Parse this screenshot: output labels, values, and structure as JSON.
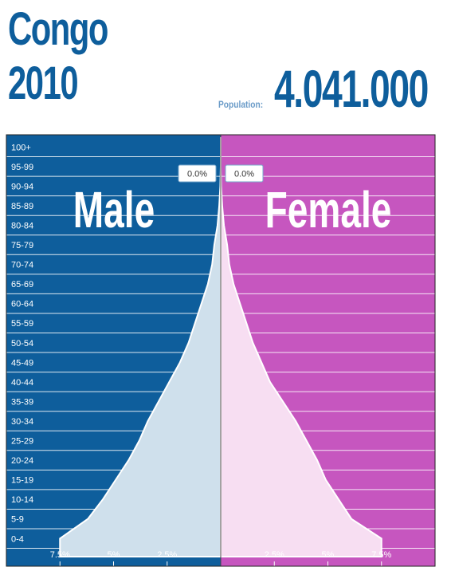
{
  "header": {
    "country": "Congo",
    "year": "2010",
    "population_label": "Population:",
    "population_value": "4.041.000"
  },
  "colors": {
    "male": "#0e5e9c",
    "female": "#c656bf",
    "male_area": "#cfe0ec",
    "female_area": "#f7def2",
    "title": "#0e5e9c"
  },
  "hover": {
    "male_value": "0.0%",
    "female_value": "0.0%"
  },
  "chart_data": {
    "type": "area",
    "orientation": "population-pyramid",
    "side_labels": {
      "male": "Male",
      "female": "Female"
    },
    "categories": [
      "0-4",
      "5-9",
      "10-14",
      "15-19",
      "20-24",
      "25-29",
      "30-34",
      "35-39",
      "40-44",
      "45-49",
      "50-54",
      "55-59",
      "60-64",
      "65-69",
      "70-74",
      "75-79",
      "80-84",
      "85-89",
      "90-94",
      "95-99",
      "100+"
    ],
    "series": [
      {
        "name": "Male",
        "values": [
          7.5,
          6.2,
          5.5,
          4.9,
          4.3,
          3.8,
          3.4,
          2.9,
          2.4,
          1.9,
          1.5,
          1.2,
          0.9,
          0.6,
          0.4,
          0.3,
          0.15,
          0.07,
          0.02,
          0.0,
          0.0
        ]
      },
      {
        "name": "Female",
        "values": [
          7.5,
          6.1,
          5.5,
          4.9,
          4.5,
          4.0,
          3.5,
          2.9,
          2.3,
          1.9,
          1.5,
          1.2,
          0.9,
          0.6,
          0.4,
          0.3,
          0.15,
          0.07,
          0.02,
          0.0,
          0.0
        ]
      }
    ],
    "x_ticks": {
      "male": [
        "7.5%",
        "5%",
        "2.5%"
      ],
      "female": [
        "2.5%",
        "5%",
        "7.5%"
      ]
    },
    "x_tick_values": [
      7.5,
      5,
      2.5
    ],
    "xlim": [
      0,
      10
    ],
    "grid": true
  }
}
